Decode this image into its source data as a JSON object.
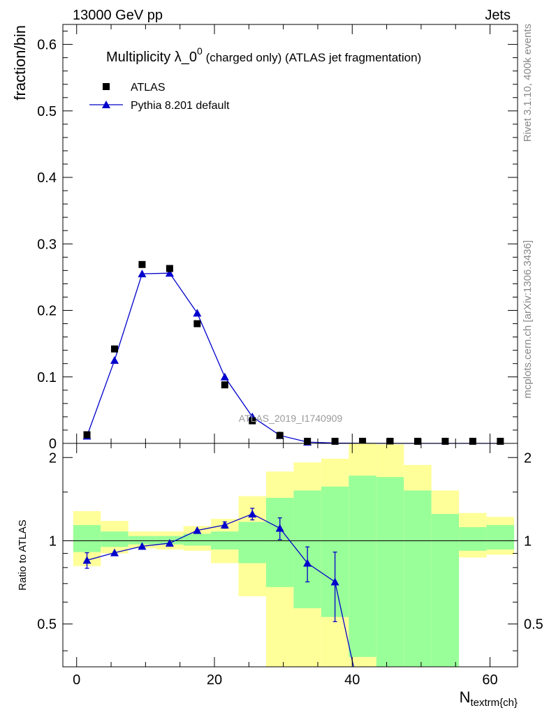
{
  "header": {
    "left": "13000 GeV pp",
    "right": "Jets"
  },
  "side_labels": {
    "rivet": "Rivet 3.1.10,  400k events",
    "mcplots": "mcplots.cern.ch [arXiv:1306.3436]"
  },
  "chart_data": [
    {
      "type": "scatter",
      "panel": "main",
      "title_main": "Multiplicity λ_0",
      "title_sup": "0",
      "title_rest": " (charged only) (ATLAS jet fragmentation)",
      "ylabel": "fraction/bin",
      "watermark": "ATLAS_2019_I1740909",
      "xlim": [
        -2,
        64
      ],
      "ylim": [
        0,
        0.63
      ],
      "yticks": [
        0,
        0.1,
        0.2,
        0.3,
        0.4,
        0.5,
        0.6
      ],
      "ytick_labels": [
        "0",
        "0.1",
        "0.2",
        "0.3",
        "0.4",
        "0.5",
        "0.6"
      ],
      "legend_position": "top-left",
      "series": [
        {
          "name": "ATLAS",
          "marker": "square",
          "color": "#000000",
          "x": [
            1.5,
            5.5,
            9.5,
            13.5,
            17.5,
            21.5,
            25.5,
            29.5,
            33.5,
            37.5,
            41.5,
            45.5,
            49.5,
            53.5,
            57.5,
            61.5
          ],
          "y": [
            0.013,
            0.142,
            0.269,
            0.263,
            0.18,
            0.088,
            0.034,
            0.012,
            0.003,
            0.001,
            0.0005,
            0.0003,
            0.0002,
            0.0001,
            0.0001,
            0.0001
          ]
        },
        {
          "name": "Pythia 8.201 default",
          "marker": "triangle",
          "color": "#0000cc",
          "x": [
            1.5,
            5.5,
            9.5,
            13.5,
            17.5,
            21.5,
            25.5,
            29.5,
            33.5,
            37.5,
            41.5,
            45.5,
            49.5,
            53.5,
            57.5,
            61.5
          ],
          "y": [
            0.011,
            0.125,
            0.255,
            0.256,
            0.196,
            0.1,
            0.04,
            0.012,
            0.002,
            0.0005,
            0.0001,
            0.0,
            0.0,
            0.0,
            0.0,
            0.0
          ]
        }
      ]
    },
    {
      "type": "scatter",
      "panel": "ratio",
      "ylabel": "Ratio to ATLAS",
      "xlabel": "N",
      "xlabel_sub": "textrm{ch}",
      "xlim": [
        -2,
        64
      ],
      "ylim": [
        0.35,
        2.25
      ],
      "log_y": true,
      "xticks": [
        0,
        20,
        40,
        60
      ],
      "xtick_labels": [
        "0",
        "20",
        "40",
        "60"
      ],
      "yticks": [
        0.5,
        1,
        2
      ],
      "ytick_labels": [
        "0.5",
        "1",
        "2"
      ],
      "reference_line": 1,
      "band_colors": {
        "inner": "#99ff99",
        "outer": "#ffff99"
      },
      "bin_edges": [
        -0.5,
        3.5,
        7.5,
        11.5,
        15.5,
        19.5,
        23.5,
        27.5,
        31.5,
        35.5,
        39.5,
        43.5,
        47.5,
        51.5,
        55.5,
        59.5,
        63.5
      ],
      "band_inner_low": [
        0.91,
        0.95,
        0.97,
        0.97,
        0.96,
        0.93,
        0.83,
        0.68,
        0.57,
        0.53,
        0.38,
        0.3,
        0.3,
        0.3,
        0.92,
        0.93
      ],
      "band_inner_high": [
        1.14,
        1.08,
        1.04,
        1.04,
        1.06,
        1.08,
        1.17,
        1.43,
        1.52,
        1.57,
        1.72,
        1.7,
        1.52,
        1.25,
        1.12,
        1.14
      ],
      "band_outer_low": [
        0.81,
        0.9,
        0.94,
        0.93,
        0.92,
        0.83,
        0.63,
        0.3,
        0.3,
        0.3,
        0.3,
        0.3,
        0.3,
        0.8,
        0.87,
        0.89
      ],
      "band_outer_high": [
        1.28,
        1.18,
        1.08,
        1.08,
        1.13,
        1.2,
        1.45,
        1.78,
        1.92,
        1.98,
        2.25,
        2.23,
        1.88,
        1.52,
        1.26,
        1.22
      ],
      "series": [
        {
          "name": "Pythia 8.201 default",
          "marker": "triangle",
          "color": "#0000cc",
          "x": [
            1.5,
            5.5,
            9.5,
            13.5,
            17.5,
            21.5,
            25.5,
            29.5,
            33.5,
            37.5,
            40.2
          ],
          "y": [
            0.85,
            0.905,
            0.955,
            0.98,
            1.09,
            1.14,
            1.25,
            1.11,
            0.83,
            0.71,
            0.35
          ],
          "err": [
            0.055,
            0.0,
            0.0,
            0.0,
            0.0,
            0.03,
            0.06,
            0.1,
            0.12,
            0.2,
            0.0
          ]
        }
      ]
    }
  ]
}
